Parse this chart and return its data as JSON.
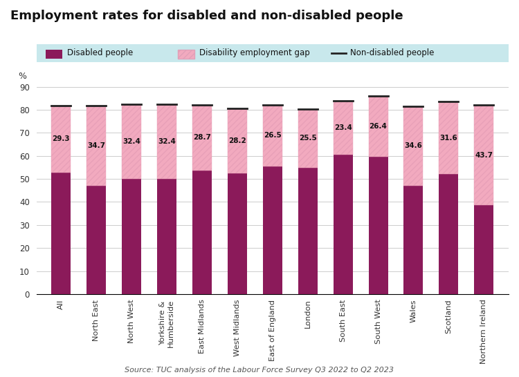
{
  "title": "Employment rates for disabled and non-disabled people",
  "source": "Source: TUC analysis of the Labour Force Survey Q3 2022 to Q2 2023",
  "categories": [
    "All",
    "North East",
    "North West",
    "Yorkshire &\nHumberside",
    "East Midlands",
    "West Midlands",
    "East of England",
    "London",
    "South East",
    "South West",
    "Wales",
    "Scotland",
    "Northern Ireland"
  ],
  "disabled_rates": [
    52.6,
    47.0,
    50.0,
    49.9,
    53.5,
    52.5,
    55.5,
    54.8,
    60.5,
    59.7,
    47.0,
    52.0,
    38.5
  ],
  "gap_values": [
    29.3,
    34.7,
    32.4,
    32.4,
    28.7,
    28.2,
    26.5,
    25.5,
    23.4,
    26.4,
    34.6,
    31.6,
    43.7
  ],
  "disabled_color": "#8B1A5A",
  "gap_color": "#F2AABF",
  "nondisabled_line_color": "#222222",
  "legend_bg": "#C8E8EC",
  "background_color": "#FFFFFF",
  "ylabel": "%",
  "ylim": [
    0,
    90
  ],
  "yticks": [
    0,
    10,
    20,
    30,
    40,
    50,
    60,
    70,
    80,
    90
  ],
  "gap_labels": [
    29.3,
    34.7,
    32.4,
    32.4,
    28.7,
    28.2,
    26.5,
    25.5,
    23.4,
    26.4,
    34.6,
    31.6,
    43.7
  ],
  "title_fontsize": 13,
  "bar_width": 0.55
}
